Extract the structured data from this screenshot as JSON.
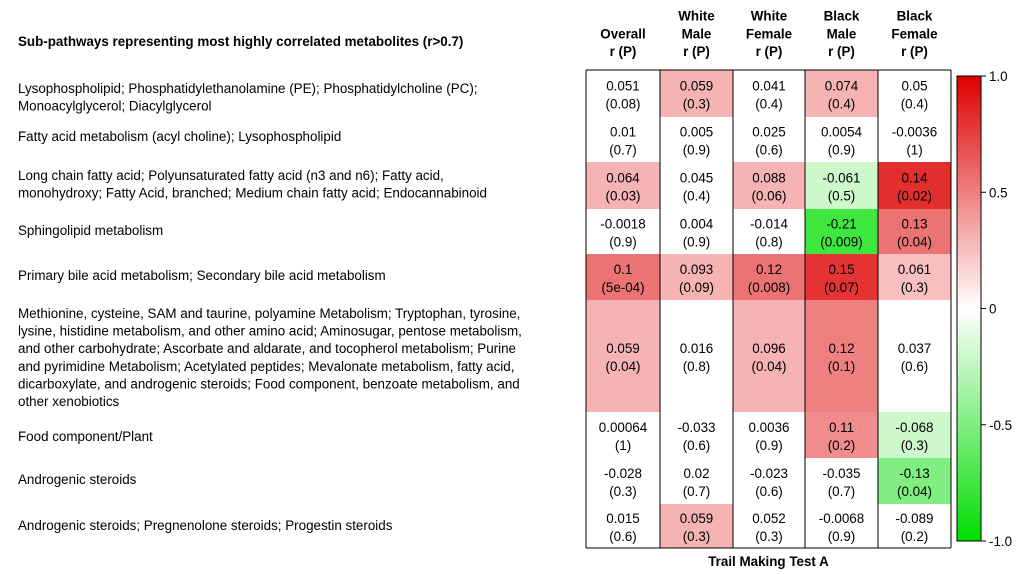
{
  "chart_data": {
    "type": "heatmap",
    "title": "Sub-pathways representing most highly correlated metabolites (r>0.7)",
    "xlabel": "Trail Making Test A",
    "columns": [
      [
        "Overall",
        "r (P)"
      ],
      [
        "White",
        "Male",
        "r (P)"
      ],
      [
        "White",
        "Female",
        "r (P)"
      ],
      [
        "Black",
        "Male",
        "r (P)"
      ],
      [
        "Black",
        "Female",
        "r (P)"
      ]
    ],
    "rows": [
      {
        "label": "Lysophospholipid; Phosphatidylethanolamine (PE); Phosphatidylcholine (PC); Monoacylglycerol; Diacylglycerol",
        "label_lines": [
          "Lysophospholipid; Phosphatidylethanolamine (PE); Phosphatidylcholine (PC);",
          "Monoacylglycerol; Diacylglycerol"
        ],
        "r": [
          "0.051",
          "0.059",
          "0.041",
          "0.074",
          "0.05"
        ],
        "p": [
          "(0.08)",
          "(0.3)",
          "(0.4)",
          "(0.4)",
          "(0.4)"
        ],
        "fill": [
          0,
          0.3,
          0,
          0.3,
          0
        ]
      },
      {
        "label": "Fatty acid metabolism (acyl choline); Lysophospholipid",
        "label_lines": [
          "Fatty acid metabolism (acyl choline); Lysophospholipid"
        ],
        "r": [
          "0.01",
          "0.005",
          "0.025",
          "0.0054",
          "-0.0036"
        ],
        "p": [
          "(0.7)",
          "(0.9)",
          "(0.6)",
          "(0.9)",
          "(1)"
        ],
        "fill": [
          0,
          0,
          0,
          0,
          0
        ]
      },
      {
        "label": "Long chain fatty acid; Polyunsaturated fatty acid (n3 and n6); Fatty acid, monohydroxy; Fatty Acid, branched; Medium chain fatty acid; Endocannabinoid",
        "label_lines": [
          "Long chain fatty acid; Polyunsaturated fatty acid (n3 and n6); Fatty acid,",
          "monohydroxy; Fatty Acid, branched; Medium chain fatty acid; Endocannabinoid"
        ],
        "r": [
          "0.064",
          "0.045",
          "0.088",
          "-0.061",
          "0.14"
        ],
        "p": [
          "(0.03)",
          "(0.4)",
          "(0.06)",
          "(0.5)",
          "(0.02)"
        ],
        "fill": [
          0.3,
          0,
          0.3,
          -0.2,
          0.82
        ]
      },
      {
        "label": "Sphingolipid metabolism",
        "label_lines": [
          "Sphingolipid metabolism"
        ],
        "r": [
          "-0.0018",
          "0.004",
          "-0.014",
          "-0.21",
          "0.13"
        ],
        "p": [
          "(0.9)",
          "(0.9)",
          "(0.8)",
          "(0.009)",
          "(0.04)"
        ],
        "fill": [
          0,
          0,
          0,
          -0.75,
          0.55
        ]
      },
      {
        "label": "Primary bile acid metabolism; Secondary bile acid metabolism",
        "label_lines": [
          "Primary bile acid metabolism; Secondary bile acid metabolism"
        ],
        "r": [
          "0.1",
          "0.093",
          "0.12",
          "0.15",
          "0.061"
        ],
        "p": [
          "(5e-04)",
          "(0.09)",
          "(0.008)",
          "(0.07)",
          "(0.3)"
        ],
        "fill": [
          0.55,
          0.3,
          0.55,
          0.8,
          0.25
        ]
      },
      {
        "label": "Methionine, cysteine, SAM and taurine, polyamine Metabolism; Tryptophan, tyrosine, lysine, histidine metabolism, and other amino acid; Aminosugar, pentose metabolism, and other carbohydrate; Ascorbate and aldarate, and tocopherol metabolism; Purine and pyrimidine Metabolism; Acetylated peptides; Mevalonate metabolism, fatty acid, dicarboxylate, and androgenic steroids; Food component, benzoate metabolism, and other xenobiotics",
        "label_lines": [
          "Methionine, cysteine, SAM and taurine, polyamine Metabolism; Tryptophan, tyrosine,",
          "lysine, histidine metabolism, and other amino acid; Aminosugar, pentose metabolism,",
          "and other carbohydrate; Ascorbate and aldarate, and tocopherol metabolism; Purine",
          "and pyrimidine Metabolism; Acetylated peptides; Mevalonate metabolism, fatty acid,",
          "dicarboxylate, and androgenic steroids; Food component, benzoate metabolism, and",
          "other xenobiotics"
        ],
        "r": [
          "0.059",
          "0.016",
          "0.096",
          "0.12",
          "0.037"
        ],
        "p": [
          "(0.04)",
          "(0.8)",
          "(0.04)",
          "(0.1)",
          "(0.6)"
        ],
        "fill": [
          0.3,
          0,
          0.3,
          0.5,
          0
        ]
      },
      {
        "label": "Food component/Plant",
        "label_lines": [
          "Food component/Plant"
        ],
        "r": [
          "0.00064",
          "-0.033",
          "0.0036",
          "0.11",
          "-0.068"
        ],
        "p": [
          "(1)",
          "(0.6)",
          "(0.9)",
          "(0.2)",
          "(0.3)"
        ],
        "fill": [
          0,
          0,
          0,
          0.45,
          -0.2
        ]
      },
      {
        "label": "Androgenic steroids",
        "label_lines": [
          "Androgenic steroids"
        ],
        "r": [
          "-0.028",
          "0.02",
          "-0.023",
          "-0.035",
          "-0.13"
        ],
        "p": [
          "(0.3)",
          "(0.7)",
          "(0.6)",
          "(0.7)",
          "(0.04)"
        ],
        "fill": [
          0,
          0,
          0,
          0,
          -0.5
        ]
      },
      {
        "label": "Androgenic steroids; Pregnenolone steroids; Progestin steroids",
        "label_lines": [
          "Androgenic steroids; Pregnenolone steroids; Progestin steroids"
        ],
        "r": [
          "0.015",
          "0.059",
          "0.052",
          "-0.0068",
          "-0.089"
        ],
        "p": [
          "(0.6)",
          "(0.3)",
          "(0.3)",
          "(0.9)",
          "(0.2)"
        ],
        "fill": [
          0,
          0.3,
          0,
          0,
          0
        ]
      }
    ],
    "colorbar": {
      "range": [
        -1.0,
        1.0
      ],
      "ticks": [
        "1.0",
        "0.5",
        "0",
        "-0.5",
        "-1.0"
      ],
      "tick_values": [
        1.0,
        0.5,
        0,
        -0.5,
        -1.0
      ],
      "colors": {
        "negative": "#00dd00",
        "zero": "#ffffff",
        "positive": "#dd0000"
      }
    }
  }
}
